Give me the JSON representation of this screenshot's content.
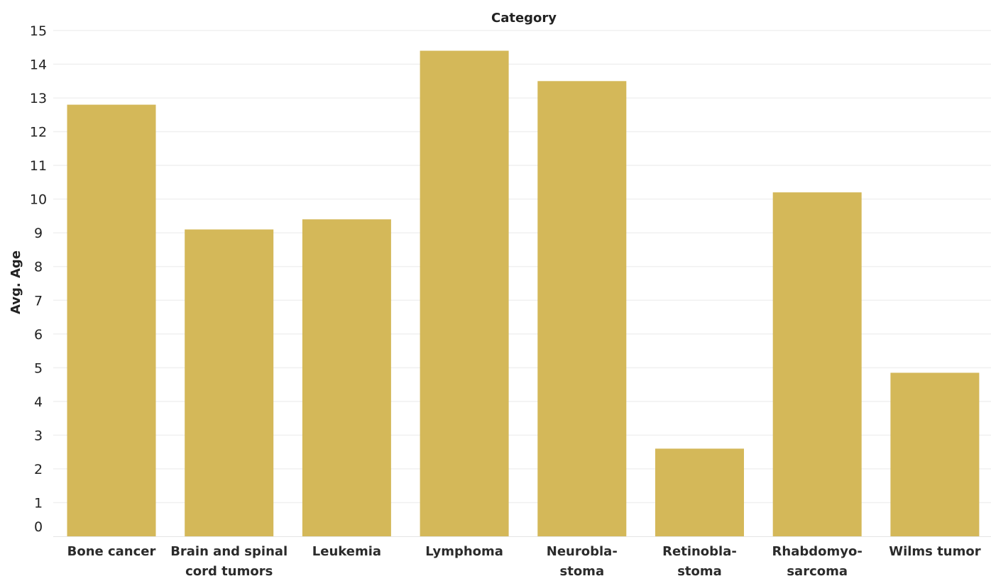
{
  "chart_data": {
    "type": "bar",
    "title": "Category",
    "xlabel": "",
    "ylabel": "Avg. Age",
    "ylim": [
      0,
      15
    ],
    "yticks": [
      0,
      1,
      2,
      3,
      4,
      5,
      6,
      7,
      8,
      9,
      10,
      11,
      12,
      13,
      14,
      15
    ],
    "grid": true,
    "categories": [
      [
        "Bone cancer"
      ],
      [
        "Brain and spinal",
        "cord tumors"
      ],
      [
        "Leukemia"
      ],
      [
        "Lymphoma"
      ],
      [
        "Neurobla-",
        "stoma"
      ],
      [
        "Retinobla-",
        "stoma"
      ],
      [
        "Rhabdomyo-",
        "sarcoma"
      ],
      [
        "Wilms tumor"
      ]
    ],
    "values": [
      12.8,
      9.1,
      9.4,
      14.4,
      13.5,
      2.6,
      10.2,
      4.85
    ],
    "bar_color": "#d4b859",
    "grid_color": "#f0f0f0"
  }
}
